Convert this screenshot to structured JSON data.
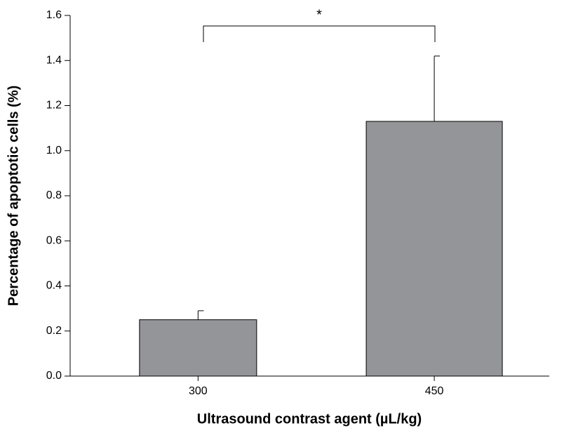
{
  "chart_data": {
    "type": "bar",
    "x_label": "Ultrasound contrast agent (µL/kg)",
    "y_label": "Percentage of apoptotic cells (%)",
    "categories": [
      "300",
      "450"
    ],
    "values": [
      0.25,
      1.13
    ],
    "errors": [
      0.04,
      0.29
    ],
    "color": "#939598",
    "ylim": [
      0,
      1.6
    ],
    "yticks": [
      {
        "value": 0,
        "label": "0.0"
      },
      0.2,
      0.4,
      0.6,
      0.8,
      {
        "value": 1,
        "label": "1.0"
      },
      1.2,
      1.4,
      1.6
    ],
    "annotation": "*"
  }
}
